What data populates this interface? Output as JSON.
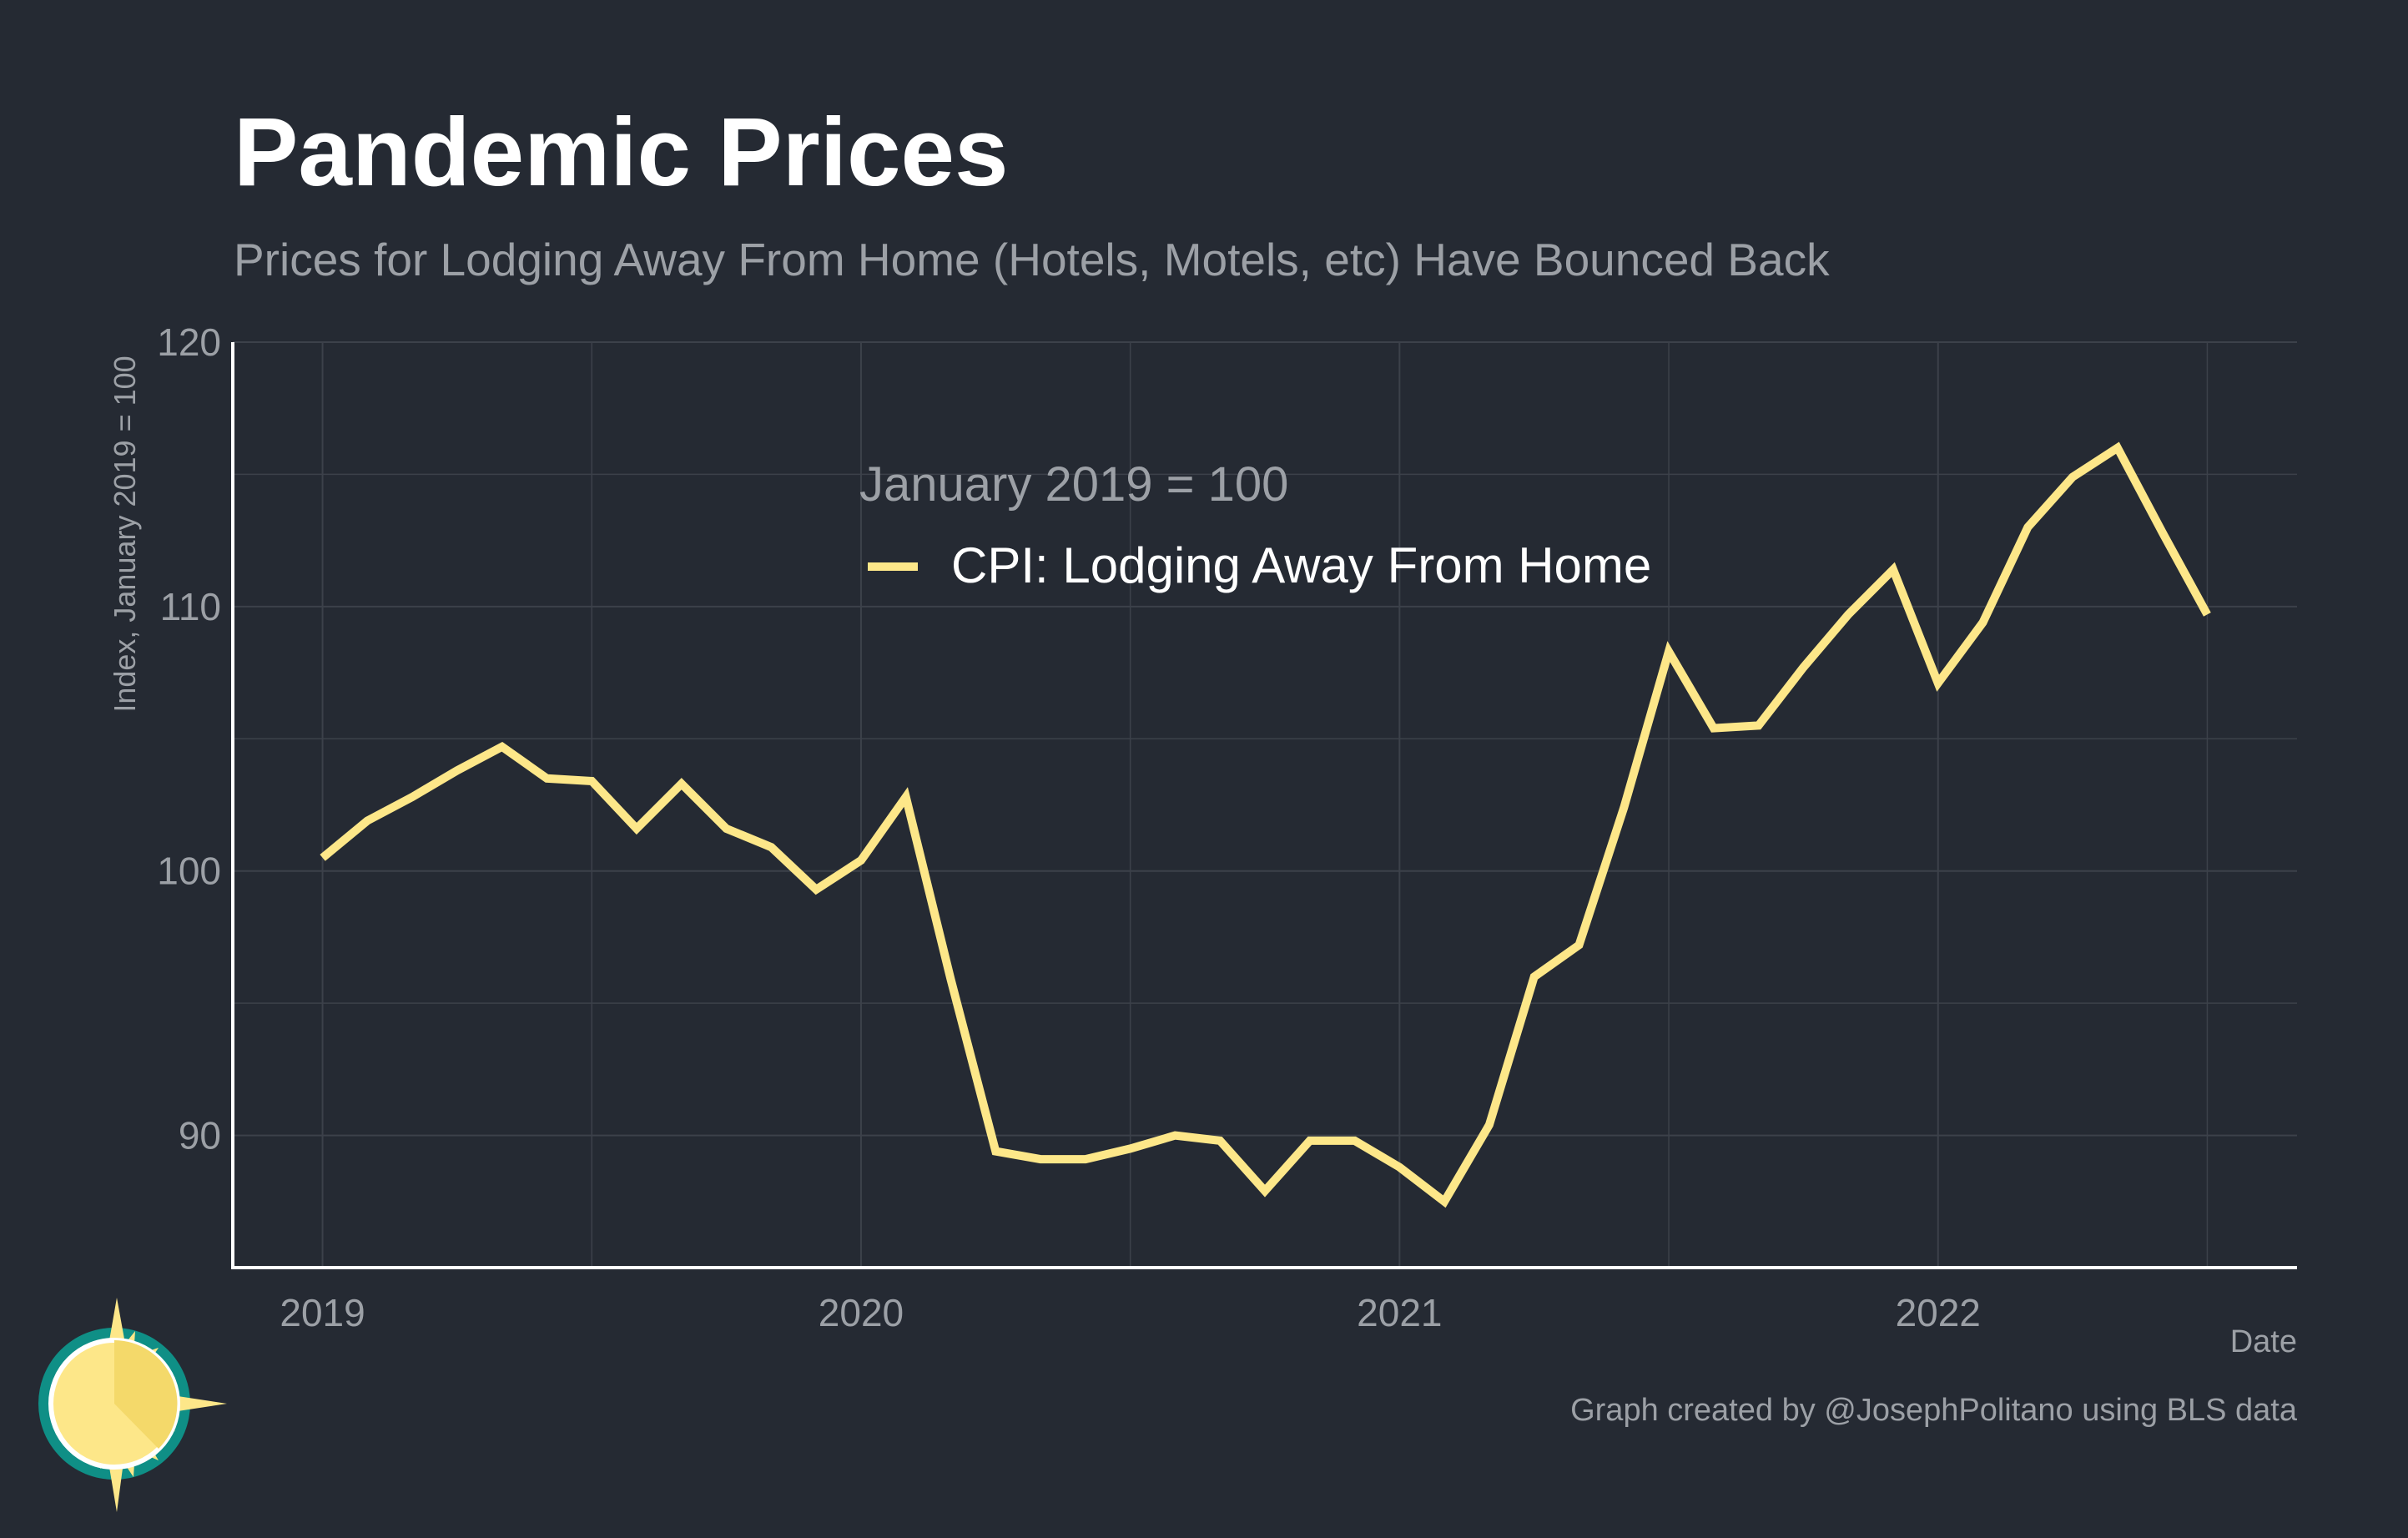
{
  "chart_data": {
    "type": "line",
    "title": "Pandemic Prices",
    "subtitle": "Prices for Lodging Away From Home (Hotels, Motels, etc) Have Bounced Back",
    "xlabel": "Date",
    "ylabel": "Index, January 2019 = 100",
    "legend_title": "January 2019 = 100",
    "legend_position": "top-center",
    "caption": "Graph created by @JosephPolitano using BLS data",
    "xlim": [
      "2018-11",
      "2022-09"
    ],
    "ylim": [
      85,
      120
    ],
    "x_ticks": [
      "2019",
      "2020",
      "2021",
      "2022"
    ],
    "y_ticks": [
      90,
      100,
      110,
      120
    ],
    "grid": true,
    "colors": {
      "background": "#252a33",
      "line": "#fde789",
      "grid": "#3c414a",
      "axis": "#ffffff",
      "title": "#ffffff",
      "muted_text": "#9ca0a6"
    },
    "x": [
      "2019-01",
      "2019-02",
      "2019-03",
      "2019-04",
      "2019-05",
      "2019-06",
      "2019-07",
      "2019-08",
      "2019-09",
      "2019-10",
      "2019-11",
      "2019-12",
      "2020-01",
      "2020-02",
      "2020-03",
      "2020-04",
      "2020-05",
      "2020-06",
      "2020-07",
      "2020-08",
      "2020-09",
      "2020-10",
      "2020-11",
      "2020-12",
      "2021-01",
      "2021-02",
      "2021-03",
      "2021-04",
      "2021-05",
      "2021-06",
      "2021-07",
      "2021-08",
      "2021-09",
      "2021-10",
      "2021-11",
      "2021-12",
      "2022-01",
      "2022-02",
      "2022-03",
      "2022-04",
      "2022-05",
      "2022-06",
      "2022-07"
    ],
    "series": [
      {
        "name": "CPI: Lodging Away From Home",
        "values": [
          100.5,
          101.9,
          102.8,
          103.8,
          104.7,
          103.5,
          103.4,
          101.6,
          103.3,
          101.6,
          100.9,
          99.3,
          100.4,
          102.8,
          95.9,
          89.4,
          89.1,
          89.1,
          89.5,
          90.0,
          89.8,
          87.9,
          89.8,
          89.8,
          88.8,
          87.5,
          90.4,
          96.0,
          97.2,
          102.4,
          108.3,
          105.4,
          105.5,
          107.7,
          109.7,
          111.4,
          107.1,
          109.4,
          113.0,
          114.9,
          116.0,
          112.8,
          109.7
        ]
      }
    ]
  }
}
